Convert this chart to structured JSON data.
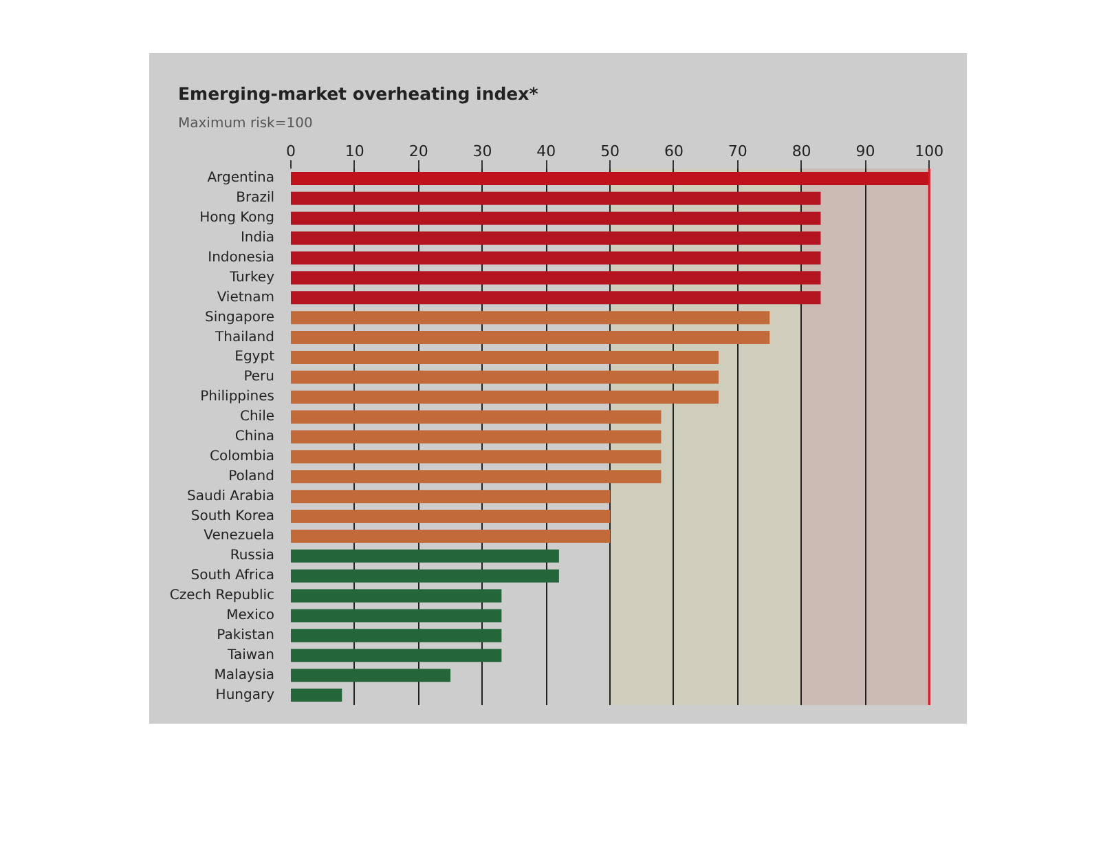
{
  "chart_data": {
    "type": "bar",
    "orientation": "horizontal",
    "title": "Emerging-market overheating index*",
    "subtitle": "Maximum risk=100",
    "categories": [
      "Argentina",
      "Brazil",
      "Hong Kong",
      "India",
      "Indonesia",
      "Turkey",
      "Vietnam",
      "Singapore",
      "Thailand",
      "Egypt",
      "Peru",
      "Philippines",
      "Chile",
      "China",
      "Colombia",
      "Poland",
      "Saudi Arabia",
      "South Korea",
      "Venezuela",
      "Russia",
      "South Africa",
      "Czech Republic",
      "Mexico",
      "Pakistan",
      "Taiwan",
      "Malaysia",
      "Hungary"
    ],
    "values": [
      100,
      83,
      83,
      83,
      83,
      83,
      83,
      75,
      75,
      67,
      67,
      67,
      58,
      58,
      58,
      58,
      50,
      50,
      50,
      42,
      42,
      33,
      33,
      33,
      33,
      25,
      8
    ],
    "colors": [
      "#c0121c",
      "#b3141f",
      "#b3141f",
      "#b3141f",
      "#b3141f",
      "#b3141f",
      "#b3141f",
      "#c26a3a",
      "#c26a3a",
      "#c26a3a",
      "#c26a3a",
      "#c26a3a",
      "#c26a3a",
      "#c26a3a",
      "#c26a3a",
      "#c26a3a",
      "#c26a3a",
      "#c26a3a",
      "#c26a3a",
      "#24663a",
      "#24663a",
      "#24663a",
      "#24663a",
      "#24663a",
      "#24663a",
      "#24663a",
      "#24663a"
    ],
    "xlim": [
      0,
      106
    ],
    "xticks": [
      0,
      10,
      20,
      30,
      40,
      50,
      60,
      70,
      80,
      90,
      100
    ],
    "grid": "x",
    "ref_lines": [
      {
        "axis": "x",
        "value": 100,
        "color": "#e0141e"
      }
    ],
    "bands": [
      {
        "axis": "x",
        "from": 50,
        "to": 80,
        "color": "#cfcdbb"
      },
      {
        "axis": "x",
        "from": 80,
        "to": 100,
        "color": "#ccbab4"
      }
    ]
  }
}
